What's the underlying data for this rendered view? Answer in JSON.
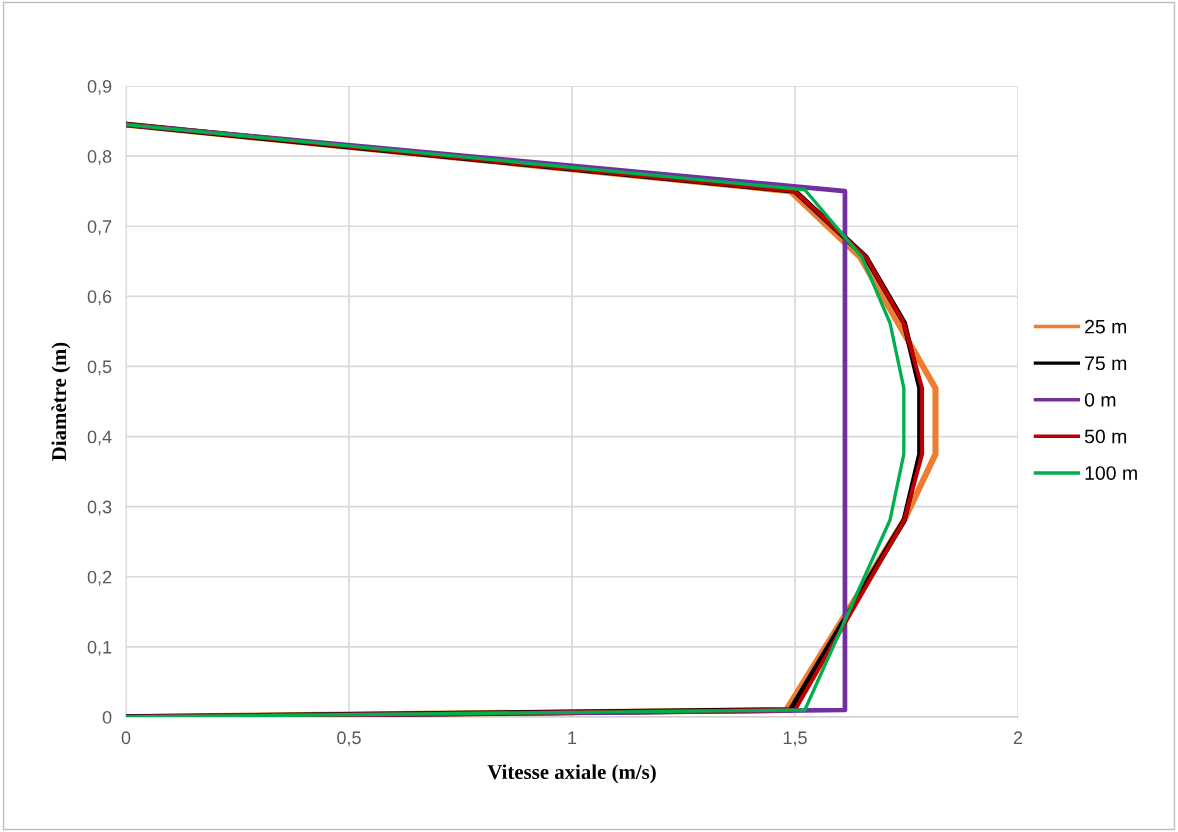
{
  "chart_data": {
    "type": "line",
    "xlabel": "Vitesse axiale (m/s)",
    "ylabel": "Diamètre (m)",
    "xlim": [
      0,
      2
    ],
    "ylim": [
      0,
      0.9
    ],
    "xticks": [
      0,
      {
        "value": 0.5,
        "label": "0,5"
      },
      1,
      {
        "value": 1.5,
        "label": "1,5"
      },
      2
    ],
    "yticks": [
      0,
      {
        "value": 0.1,
        "label": "0,1"
      },
      {
        "value": 0.2,
        "label": "0,2"
      },
      {
        "value": 0.3,
        "label": "0,3"
      },
      {
        "value": 0.4,
        "label": "0,4"
      },
      {
        "value": 0.5,
        "label": "0,5"
      },
      {
        "value": 0.6,
        "label": "0,6"
      },
      {
        "value": 0.7,
        "label": "0,7"
      },
      {
        "value": 0.8,
        "label": "0,8"
      },
      {
        "value": 0.9,
        "label": "0,9"
      }
    ],
    "grid": true,
    "legend": "right",
    "marker": "none",
    "line_style": "solid",
    "series": [
      {
        "name": "25 m",
        "color": "#ed7d31",
        "x": [
          0,
          1.48,
          1.745,
          1.815,
          1.815,
          1.646,
          1.49,
          0
        ],
        "values": [
          0,
          0.01,
          0.281,
          0.375,
          0.469,
          0.656,
          0.75,
          0.845
        ]
      },
      {
        "name": "75 m",
        "color": "#000000",
        "x": [
          0,
          1.49,
          1.745,
          1.78,
          1.78,
          1.745,
          1.659,
          1.5,
          0
        ],
        "values": [
          0,
          0.01,
          0.281,
          0.375,
          0.469,
          0.562,
          0.656,
          0.75,
          0.845
        ]
      },
      {
        "name": "0 m",
        "color": "#7030a0",
        "x": [
          0,
          1.612,
          1.612,
          0
        ],
        "values": [
          0,
          0.01,
          0.75,
          0.845
        ]
      },
      {
        "name": "50 m",
        "color": "#c00000",
        "x": [
          0,
          1.5,
          1.745,
          1.785,
          1.785,
          1.744,
          1.659,
          1.5,
          0
        ],
        "values": [
          0,
          0.01,
          0.281,
          0.375,
          0.469,
          0.562,
          0.656,
          0.75,
          0.845
        ]
      },
      {
        "name": "100 m",
        "color": "#00b050",
        "x": [
          0,
          1.522,
          1.713,
          1.744,
          1.744,
          1.713,
          1.65,
          1.522,
          0
        ],
        "values": [
          0,
          0.01,
          0.281,
          0.375,
          0.469,
          0.562,
          0.656,
          0.752,
          0.845
        ]
      }
    ]
  }
}
